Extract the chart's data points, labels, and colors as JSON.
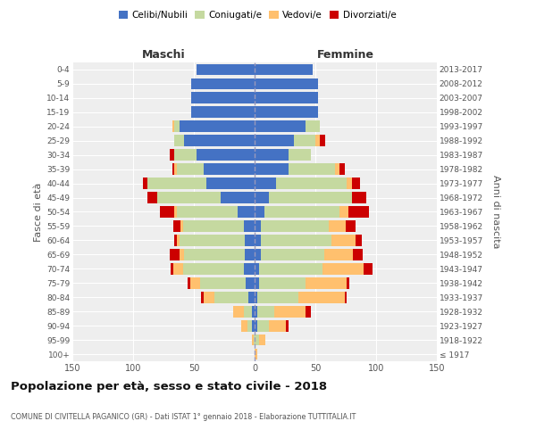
{
  "age_groups": [
    "100+",
    "95-99",
    "90-94",
    "85-89",
    "80-84",
    "75-79",
    "70-74",
    "65-69",
    "60-64",
    "55-59",
    "50-54",
    "45-49",
    "40-44",
    "35-39",
    "30-34",
    "25-29",
    "20-24",
    "15-19",
    "10-14",
    "5-9",
    "0-4"
  ],
  "birth_years": [
    "≤ 1917",
    "1918-1922",
    "1923-1927",
    "1928-1932",
    "1933-1937",
    "1938-1942",
    "1943-1947",
    "1948-1952",
    "1953-1957",
    "1958-1962",
    "1963-1967",
    "1968-1972",
    "1973-1977",
    "1978-1982",
    "1983-1987",
    "1988-1992",
    "1993-1997",
    "1998-2002",
    "2003-2007",
    "2008-2012",
    "2013-2017"
  ],
  "males_celibe": [
    0,
    0,
    2,
    2,
    5,
    7,
    9,
    8,
    8,
    9,
    14,
    28,
    40,
    42,
    48,
    58,
    62,
    52,
    52,
    52,
    48
  ],
  "males_coniugato": [
    0,
    1,
    4,
    7,
    28,
    38,
    50,
    50,
    54,
    50,
    50,
    52,
    48,
    22,
    18,
    8,
    4,
    0,
    0,
    0,
    0
  ],
  "males_vedovo": [
    0,
    1,
    5,
    9,
    9,
    8,
    8,
    4,
    2,
    2,
    2,
    0,
    0,
    2,
    0,
    0,
    2,
    0,
    0,
    0,
    0
  ],
  "males_divorziato": [
    0,
    0,
    0,
    0,
    2,
    2,
    2,
    8,
    2,
    6,
    12,
    8,
    4,
    2,
    4,
    0,
    0,
    0,
    0,
    0,
    0
  ],
  "females_nubile": [
    0,
    0,
    2,
    2,
    2,
    4,
    4,
    5,
    5,
    5,
    8,
    12,
    18,
    28,
    28,
    32,
    42,
    52,
    52,
    52,
    48
  ],
  "females_coniugata": [
    0,
    4,
    10,
    14,
    34,
    38,
    52,
    52,
    58,
    56,
    62,
    68,
    58,
    38,
    18,
    18,
    12,
    0,
    0,
    0,
    0
  ],
  "females_vedova": [
    2,
    5,
    14,
    26,
    38,
    34,
    34,
    24,
    20,
    14,
    7,
    0,
    4,
    4,
    0,
    4,
    0,
    0,
    0,
    0,
    0
  ],
  "females_divorziata": [
    0,
    0,
    2,
    4,
    2,
    2,
    7,
    8,
    5,
    8,
    17,
    12,
    7,
    4,
    0,
    4,
    0,
    0,
    0,
    0,
    0
  ],
  "color_celibe": "#4472c4",
  "color_coniugato": "#c5d9a0",
  "color_vedovo": "#ffc06e",
  "color_divorziato": "#cc0000",
  "bg_color": "#eeeeee",
  "grid_color": "#ffffff",
  "title": "Popolazione per età, sesso e stato civile - 2018",
  "subtitle": "COMUNE DI CIVITELLA PAGANICO (GR) - Dati ISTAT 1° gennaio 2018 - Elaborazione TUTTITALIA.IT",
  "xlabel_left": "Maschi",
  "xlabel_right": "Femmine",
  "ylabel_left": "Fasce di età",
  "ylabel_right": "Anni di nascita",
  "xmax": 150,
  "legend_labels": [
    "Celibi/Nubili",
    "Coniugati/e",
    "Vedovi/e",
    "Divorziati/e"
  ]
}
